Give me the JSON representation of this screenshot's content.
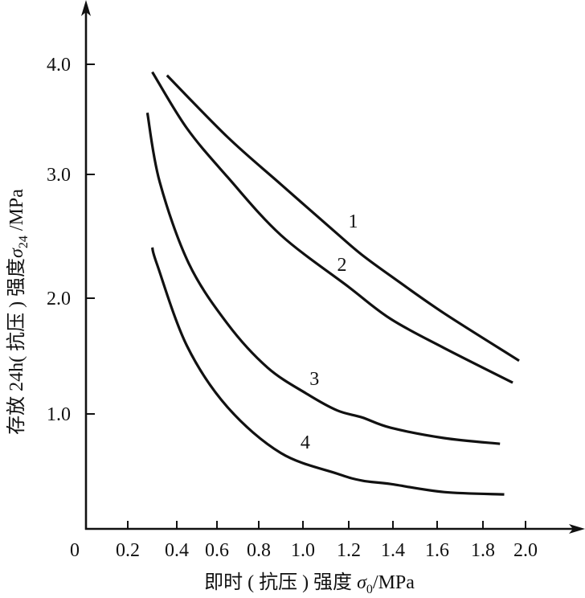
{
  "chart_data": {
    "type": "line",
    "xlabel": {
      "prefix": "即时 ( 抗压 ) 强度 ",
      "symbol": "σ",
      "subscript": "0",
      "unit": "/MPa"
    },
    "ylabel": {
      "prefix": "存放 24h( 抗压 ) 强度",
      "symbol": "σ",
      "subscript": "24",
      "unit": " /MPa"
    },
    "origin_label": "0",
    "x_ticks": [
      "0.2",
      "0.4",
      "0.6",
      "0.8",
      "1.0",
      "1.2",
      "1.4",
      "1.6",
      "1.8",
      "2.0"
    ],
    "y_ticks": [
      "1.0",
      "2.0",
      "3.0",
      "4.0"
    ],
    "xlim": [
      0,
      2.2
    ],
    "ylim": [
      0,
      4.5
    ],
    "grid": false,
    "series": [
      {
        "name": "1",
        "x": [
          0.36,
          0.65,
          0.9,
          1.15,
          1.26,
          1.39,
          1.63,
          1.97
        ],
        "y": [
          3.9,
          3.34,
          2.92,
          2.52,
          2.35,
          2.18,
          1.87,
          1.46
        ]
      },
      {
        "name": "2",
        "x": [
          0.3,
          0.45,
          0.65,
          0.9,
          1.2,
          1.39,
          1.63,
          1.94
        ],
        "y": [
          3.93,
          3.42,
          2.98,
          2.51,
          2.09,
          1.82,
          1.57,
          1.27
        ]
      },
      {
        "name": "3",
        "x": [
          0.28,
          0.33,
          0.46,
          0.65,
          0.84,
          1.02,
          1.15,
          1.26,
          1.39,
          1.63,
          1.88
        ],
        "y": [
          3.56,
          2.94,
          2.28,
          1.78,
          1.4,
          1.17,
          1.03,
          0.97,
          0.88,
          0.79,
          0.74
        ]
      },
      {
        "name": "4",
        "x": [
          0.3,
          0.32,
          0.45,
          0.65,
          0.9,
          1.15,
          1.26,
          1.39,
          1.63,
          1.9
        ],
        "y": [
          2.41,
          2.27,
          1.59,
          1.06,
          0.66,
          0.48,
          0.42,
          0.39,
          0.32,
          0.3
        ]
      }
    ]
  }
}
